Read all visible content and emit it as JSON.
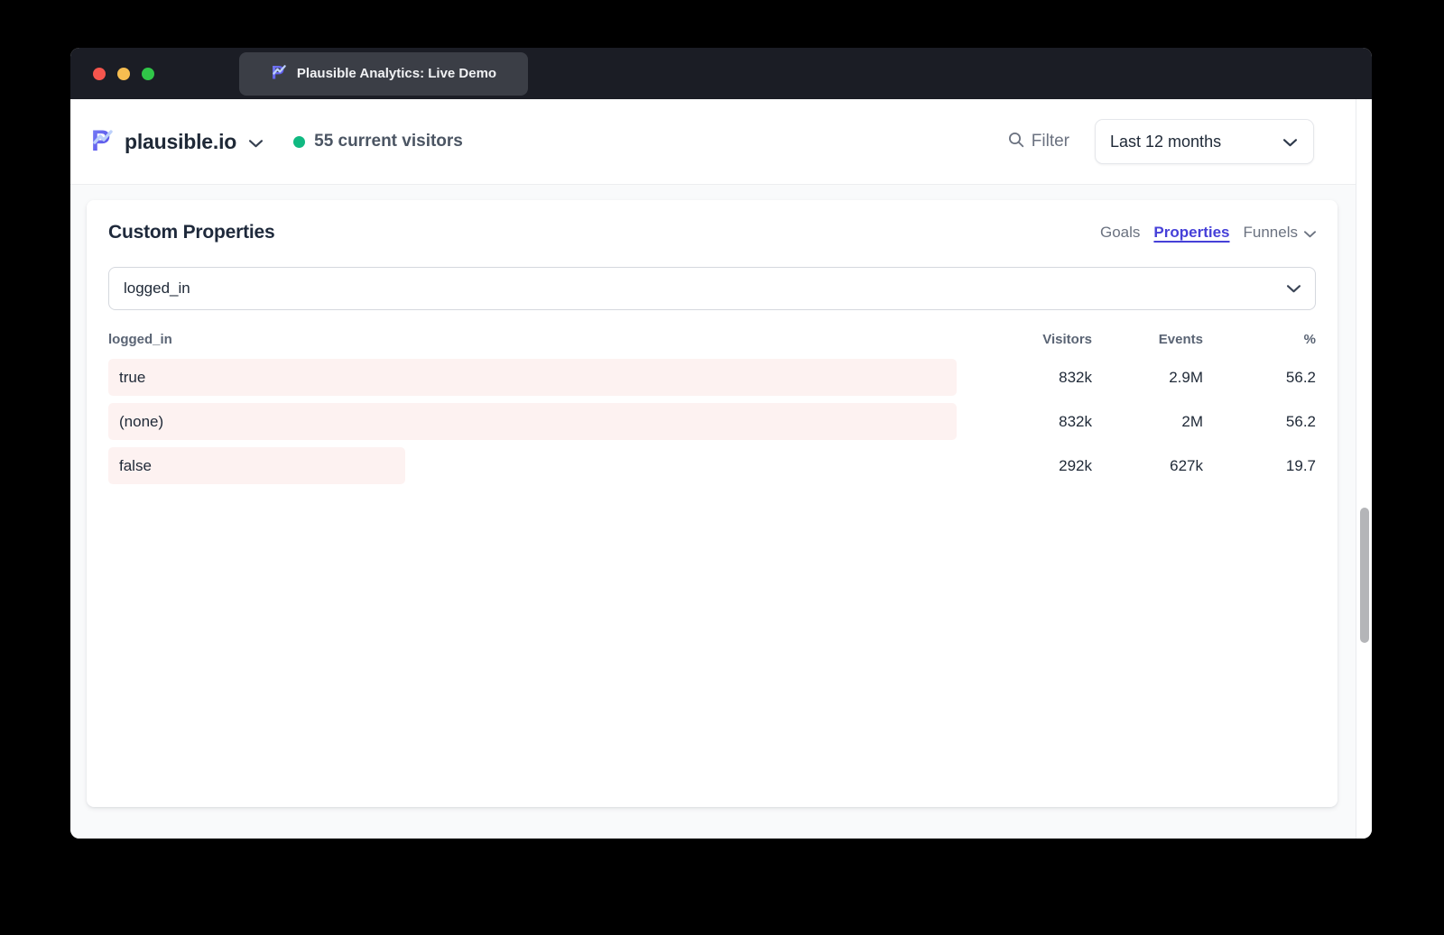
{
  "window": {
    "tab_title": "Plausible Analytics: Live Demo"
  },
  "header": {
    "site_name": "plausible.io",
    "live_visitors": "55 current visitors",
    "filter_label": "Filter",
    "date_range": "Last 12 months"
  },
  "panel": {
    "title": "Custom Properties",
    "tabs": {
      "goals": "Goals",
      "properties": "Properties",
      "funnels": "Funnels"
    },
    "property_filter": {
      "value": "logged_in"
    },
    "table": {
      "key_header": "logged_in",
      "columns": [
        "Visitors",
        "Events",
        "%"
      ],
      "rows": [
        {
          "label": "true",
          "visitors": "832k",
          "events": "2.9M",
          "percent": "56.2",
          "bar_pct": 100
        },
        {
          "label": "(none)",
          "visitors": "832k",
          "events": "2M",
          "percent": "56.2",
          "bar_pct": 100
        },
        {
          "label": "false",
          "visitors": "292k",
          "events": "627k",
          "percent": "19.7",
          "bar_pct": 35
        }
      ]
    }
  },
  "colors": {
    "accent_indigo": "#4640d8",
    "live_dot_green": "#10b981",
    "bar_pink": "#fdf2f1",
    "tab_bar_dark": "#1b1d25",
    "text_dark": "#1f2937"
  }
}
